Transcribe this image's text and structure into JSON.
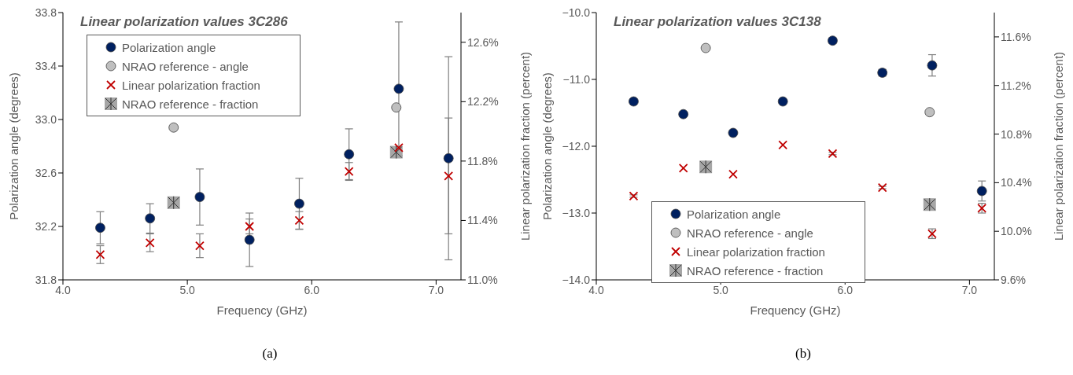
{
  "chart_data": [
    {
      "type": "scatter",
      "title": "Linear polarization values 3C286",
      "xlabel": "Frequency (GHz)",
      "ylabel": "Polarization angle (degrees)",
      "y2label": "Linear polarization fraction (percent)",
      "annotations": [
        "(a)"
      ],
      "legend": "top left",
      "xlim": [
        4.0,
        7.2
      ],
      "xticks": [
        {
          "value": 4,
          "label": "4.0"
        },
        {
          "value": 5,
          "label": "5.0"
        },
        {
          "value": 6,
          "label": "6.0"
        },
        {
          "value": 7,
          "label": "7.0"
        }
      ],
      "ylim": [
        31.8,
        33.8
      ],
      "yticks": [
        {
          "value": 31.8,
          "label": "31.8"
        },
        {
          "value": 32.2,
          "label": "32.2"
        },
        {
          "value": 32.6,
          "label": "32.6"
        },
        {
          "value": 33.0,
          "label": "33.0"
        },
        {
          "value": 33.4,
          "label": "33.4"
        },
        {
          "value": 33.8,
          "label": "33.8"
        }
      ],
      "y2lim": [
        11.0,
        12.8
      ],
      "y2ticks": [
        {
          "value": 11.0,
          "label": "11.0%"
        },
        {
          "value": 11.4,
          "label": "11.4%"
        },
        {
          "value": 11.8,
          "label": "11.8%"
        },
        {
          "value": 12.2,
          "label": "12.2%"
        },
        {
          "value": 12.6,
          "label": "12.6%"
        }
      ],
      "series": [
        {
          "name": "Polarization angle",
          "color": "#002060",
          "marker": "circle",
          "x": [
            4.3,
            4.7,
            5.1,
            5.5,
            5.9,
            6.3,
            6.7,
            7.1
          ],
          "values": [
            32.19,
            32.26,
            32.42,
            32.1,
            32.37,
            32.74,
            33.23,
            32.71
          ],
          "errors": [
            0.12,
            0.11,
            0.21,
            0.2,
            0.19,
            0.19,
            0.5,
            0.76
          ]
        },
        {
          "name": "NRAO reference - angle",
          "color": "#bfbfbf",
          "marker": "circle",
          "x": [
            4.89,
            6.68
          ],
          "values": [
            32.94,
            33.09
          ]
        },
        {
          "name": "Linear polarization fraction",
          "color": "#c00000",
          "marker": "cross",
          "axis": "y2",
          "x": [
            4.3,
            4.7,
            5.1,
            5.5,
            5.9,
            6.3,
            6.7,
            7.1
          ],
          "values": [
            11.17,
            11.25,
            11.23,
            11.36,
            11.4,
            11.73,
            11.89,
            11.7
          ],
          "errors": [
            0.06,
            0.06,
            0.08,
            0.05,
            0.06,
            0.06,
            null,
            0.39
          ]
        },
        {
          "name": "NRAO reference - fraction",
          "color": "#a6a6a6",
          "marker": "square",
          "axis": "y2",
          "x": [
            4.89,
            6.68
          ],
          "values": [
            11.52,
            11.86
          ]
        }
      ]
    },
    {
      "type": "scatter",
      "title": "Linear polarization values 3C138",
      "xlabel": "Frequency (GHz)",
      "ylabel": "Polarization angle (degrees)",
      "y2label": "Linear polarization fraction (percent)",
      "annotations": [
        "(b)"
      ],
      "legend": "bottom",
      "xlim": [
        4.0,
        7.2
      ],
      "xticks": [
        {
          "value": 4,
          "label": "4.0"
        },
        {
          "value": 5,
          "label": "5.0"
        },
        {
          "value": 6,
          "label": "6.0"
        },
        {
          "value": 7,
          "label": "7.0"
        }
      ],
      "ylim": [
        -14.0,
        -10.0
      ],
      "yticks": [
        {
          "value": -14,
          "label": "−14.0"
        },
        {
          "value": -13,
          "label": "−13.0"
        },
        {
          "value": -12,
          "label": "−12.0"
        },
        {
          "value": -11,
          "label": "−11.0"
        },
        {
          "value": -10,
          "label": "−10.0"
        }
      ],
      "y2lim": [
        9.6,
        11.8
      ],
      "y2ticks": [
        {
          "value": 9.6,
          "label": "9.6%"
        },
        {
          "value": 10.0,
          "label": "10.0%"
        },
        {
          "value": 10.4,
          "label": "10.4%"
        },
        {
          "value": 10.8,
          "label": "10.8%"
        },
        {
          "value": 11.2,
          "label": "11.2%"
        },
        {
          "value": 11.6,
          "label": "11.6%"
        }
      ],
      "series": [
        {
          "name": "Polarization angle",
          "color": "#002060",
          "marker": "circle",
          "x": [
            4.3,
            4.7,
            5.1,
            5.5,
            5.9,
            6.3,
            6.7,
            7.1
          ],
          "values": [
            -11.33,
            -11.52,
            -11.8,
            -11.33,
            -10.42,
            -10.9,
            -10.79,
            -12.67
          ],
          "errors": [
            0.04,
            null,
            null,
            null,
            0.04,
            0.05,
            0.16,
            0.15
          ]
        },
        {
          "name": "NRAO reference - angle",
          "color": "#bfbfbf",
          "marker": "circle",
          "x": [
            4.88,
            6.68
          ],
          "values": [
            -10.53,
            -11.49
          ]
        },
        {
          "name": "Linear polarization fraction",
          "color": "#c00000",
          "marker": "cross",
          "axis": "y2",
          "x": [
            4.3,
            4.7,
            5.1,
            5.5,
            5.9,
            6.3,
            6.7,
            7.1
          ],
          "values": [
            10.29,
            10.52,
            10.47,
            10.71,
            10.64,
            10.36,
            9.98,
            10.19
          ],
          "errors": [
            0.01,
            null,
            null,
            null,
            0.01,
            0.01,
            0.04,
            0.04
          ]
        },
        {
          "name": "NRAO reference - fraction",
          "color": "#a6a6a6",
          "marker": "square",
          "axis": "y2",
          "x": [
            4.88,
            6.68
          ],
          "values": [
            10.53,
            10.22
          ]
        }
      ]
    }
  ]
}
